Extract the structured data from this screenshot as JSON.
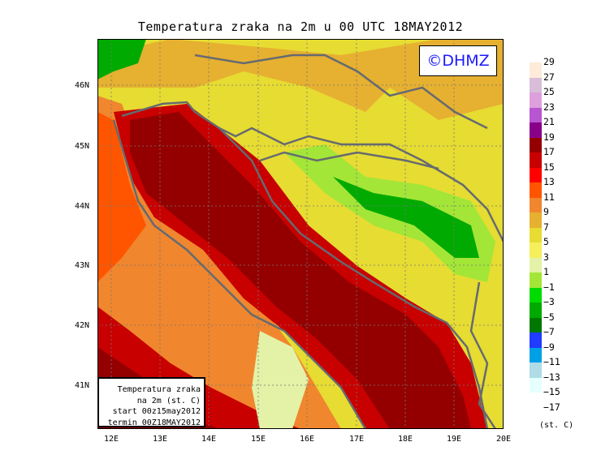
{
  "title": "Temperatura zraka na 2m u 00 UTC 18MAY2012",
  "logo": "©DHMZ",
  "lat_labels": [
    "46N",
    "45N",
    "44N",
    "43N",
    "42N",
    "41N"
  ],
  "lon_labels": [
    "12E",
    "13E",
    "14E",
    "15E",
    "16E",
    "17E",
    "18E",
    "19E",
    "20E"
  ],
  "info_box": [
    "Temperatura zraka",
    "na 2m (st. C)",
    "start 00z15may2012",
    "termin 00Z18MAY2012"
  ],
  "legend": {
    "labels": [
      "29",
      "27",
      "25",
      "23",
      "21",
      "19",
      "17",
      "15",
      "13",
      "11",
      "9",
      "7",
      "5",
      "3",
      "1",
      "−1",
      "−3",
      "−5",
      "−7",
      "−9",
      "−11",
      "−13",
      "−15",
      "−17"
    ],
    "colors": [
      "#ffebda",
      "#d8bed8",
      "#dea0dc",
      "#b855d0",
      "#880088",
      "#940000",
      "#c80000",
      "#ff0000",
      "#ff5500",
      "#f0862e",
      "#e6b030",
      "#e6dc32",
      "#f5ef5c",
      "#e3f2a6",
      "#a3e637",
      "#00dc00",
      "#00aa00",
      "#007800",
      "#1f3cff",
      "#00a0e6",
      "#afdce6",
      "#e6ffff"
    ],
    "units": "(st. C)"
  }
}
